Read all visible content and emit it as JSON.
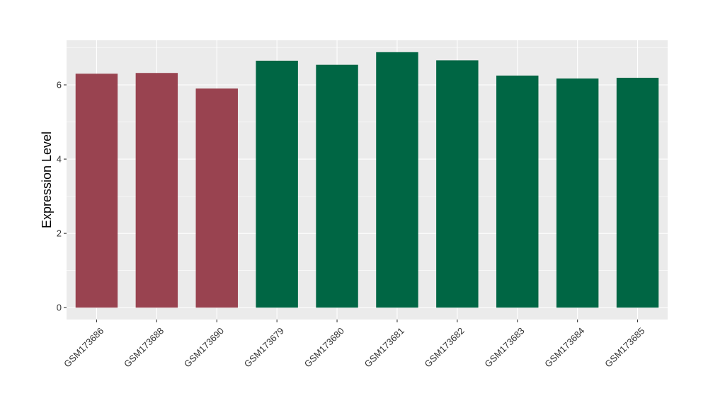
{
  "chart_data": {
    "type": "bar",
    "title": "",
    "xlabel": "",
    "ylabel": "Expression Level",
    "ylim": [
      -0.32,
      7.2
    ],
    "yticks": [
      0,
      2,
      4,
      6
    ],
    "yticks_labels": [
      "0",
      "2",
      "4",
      "6"
    ],
    "grid": true,
    "categories": [
      "GSM173686",
      "GSM173688",
      "GSM173690",
      "GSM173679",
      "GSM173680",
      "GSM173681",
      "GSM173682",
      "GSM173683",
      "GSM173684",
      "GSM173685"
    ],
    "values": [
      6.3,
      6.32,
      5.9,
      6.65,
      6.54,
      6.88,
      6.66,
      6.25,
      6.17,
      6.19
    ],
    "bar_colors": [
      "#994350",
      "#994350",
      "#994350",
      "#006644",
      "#006644",
      "#006644",
      "#006644",
      "#006644",
      "#006644",
      "#006644"
    ],
    "panel_background": "#EBEBEB",
    "grid_color": "#FFFFFF"
  }
}
